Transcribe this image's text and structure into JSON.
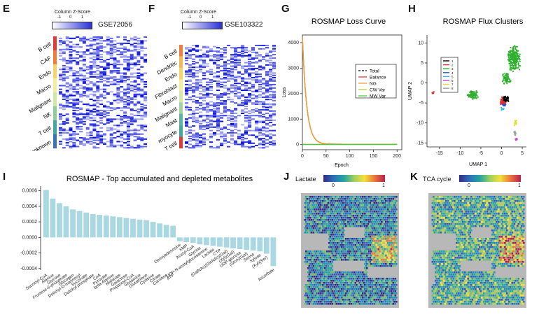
{
  "panels": {
    "E": {
      "letter": "E",
      "legend_title": "Column Z-Score",
      "legend_ticks": [
        "-1",
        "0",
        "1"
      ],
      "dataset": "GSE72056",
      "cell_types": [
        "B cell",
        "CAF",
        "Endo",
        "Macro",
        "Malignant",
        "NK",
        "T cell",
        "unknown"
      ],
      "colors": [
        "#e03a3a",
        "#f07d3e",
        "#f8d36c",
        "#f3ee9d",
        "#cfe7a7",
        "#8fce9b",
        "#45a79f",
        "#3b73b3"
      ]
    },
    "F": {
      "letter": "F",
      "legend_title": "Column Z-Score",
      "legend_ticks": [
        "-1",
        "0",
        "1"
      ],
      "dataset": "GSE103322",
      "cell_types": [
        "B cell",
        "Dendritic",
        "Endo",
        "Fibroblast",
        "Macro",
        "Malignant",
        "Mast",
        "myocyte",
        "T cell"
      ],
      "colors": [
        "#f07d3e",
        "#f7b757",
        "#f8d36c",
        "#f3ee9d",
        "#d5e9a9",
        "#a0d4a1",
        "#5db4a2",
        "#45a79f",
        "#e03a3a"
      ]
    },
    "I": {
      "letter": "I"
    },
    "J": {
      "letter": "J",
      "label": "Lactate",
      "ticks": [
        "0",
        "1"
      ]
    },
    "K": {
      "letter": "K",
      "label": "TCA cycle",
      "ticks": [
        "0",
        "1"
      ]
    }
  },
  "chart_data": [
    {
      "id": "G",
      "type": "line",
      "title": "ROSMAP Loss Curve",
      "xlabel": "Epoch",
      "ylabel": "Loss",
      "xlim": [
        0,
        210
      ],
      "ylim": [
        -200,
        4300
      ],
      "xticks": [
        0,
        50,
        100,
        150,
        200
      ],
      "yticks": [
        0,
        1000,
        2000,
        3000,
        4000
      ],
      "legend": [
        "Total",
        "Balance",
        "NG",
        "CW Var",
        "MW Var"
      ],
      "series": [
        {
          "name": "Total",
          "color": "#000000",
          "dash": true,
          "values": "decay"
        },
        {
          "name": "Balance",
          "color": "#e23b3b",
          "values": "decay"
        },
        {
          "name": "NG",
          "color": "#f0a030",
          "values": "decay"
        },
        {
          "name": "CW Var",
          "color": "#b5d43a",
          "values": "flat"
        },
        {
          "name": "MW Var",
          "color": "#49cc38",
          "values": "flat"
        }
      ],
      "start_value": 4200
    },
    {
      "id": "H",
      "type": "scatter",
      "title": "ROSMAP Flux Clusters",
      "xlabel": "UMAP 1",
      "ylabel": "UMAP 2",
      "xlim": [
        -18,
        6
      ],
      "ylim": [
        -16,
        12
      ],
      "xticks": [
        -15,
        -10,
        -5,
        0,
        5
      ],
      "yticks": [
        -15,
        -10,
        -5,
        0,
        5,
        10
      ],
      "legend": [
        "1",
        "2",
        "3",
        "4",
        "5",
        "6",
        "7",
        "8"
      ],
      "colors": [
        "#000000",
        "#e03030",
        "#2fb02f",
        "#3050e0",
        "#30c0e0",
        "#d040d0",
        "#e0e030",
        "#a0a0a0"
      ]
    },
    {
      "id": "I",
      "type": "bar",
      "title": "ROSMAP - Top accumulated and depleted metabolites",
      "ylim": [
        -0.00042,
        0.00066
      ],
      "yticks": [
        "0.0006",
        "0.0004",
        "0.0002",
        "0.0000",
        "-0.0002",
        "-0.0004"
      ],
      "categories": [
        "Succinyl-CoA",
        "Alanine",
        "Glucose",
        "Fructose-6-phosphate",
        "Glycogen",
        "Dolichyl-D-mannosyl",
        "Succinate",
        "Dolichyl phosphate",
        "CoA",
        "Pyruvate",
        "beta-Alanine",
        "Malonate",
        "Galactose",
        "Propanoyl-CoA",
        "Glutamine",
        "Glutathione",
        "Cysteine",
        "Citrate",
        "Carnitine",
        "ATP",
        "Deoxyadenosine",
        "XMP",
        "Acetyl-CoA",
        "Glycine",
        "UDP-N-acetylglucosamine",
        "Lactate",
        "CTP",
        "(GalNAc)(GlcNAc)(Gal)",
        "(Xyl)(Gal)",
        "UDP-glucose",
        "(GlcA)(Gal)",
        "Serine",
        "Xylose",
        "(Xyl)(Ser)",
        "Ascorbate"
      ],
      "values": [
        0.00061,
        0.0005,
        0.00044,
        0.0004,
        0.00036,
        0.00034,
        0.00032,
        0.0003,
        0.00029,
        0.00028,
        0.00027,
        0.00026,
        0.00025,
        0.00024,
        0.00023,
        0.00022,
        0.0002,
        0.00018,
        0.00016,
        0.00015,
        -5e-05,
        -6e-05,
        -7e-05,
        -9e-05,
        -0.0001,
        -0.00011,
        -0.00012,
        -0.00013,
        -0.00014,
        -0.00015,
        -0.00016,
        -0.00017,
        -0.00018,
        -0.00021,
        -0.00037
      ]
    }
  ]
}
